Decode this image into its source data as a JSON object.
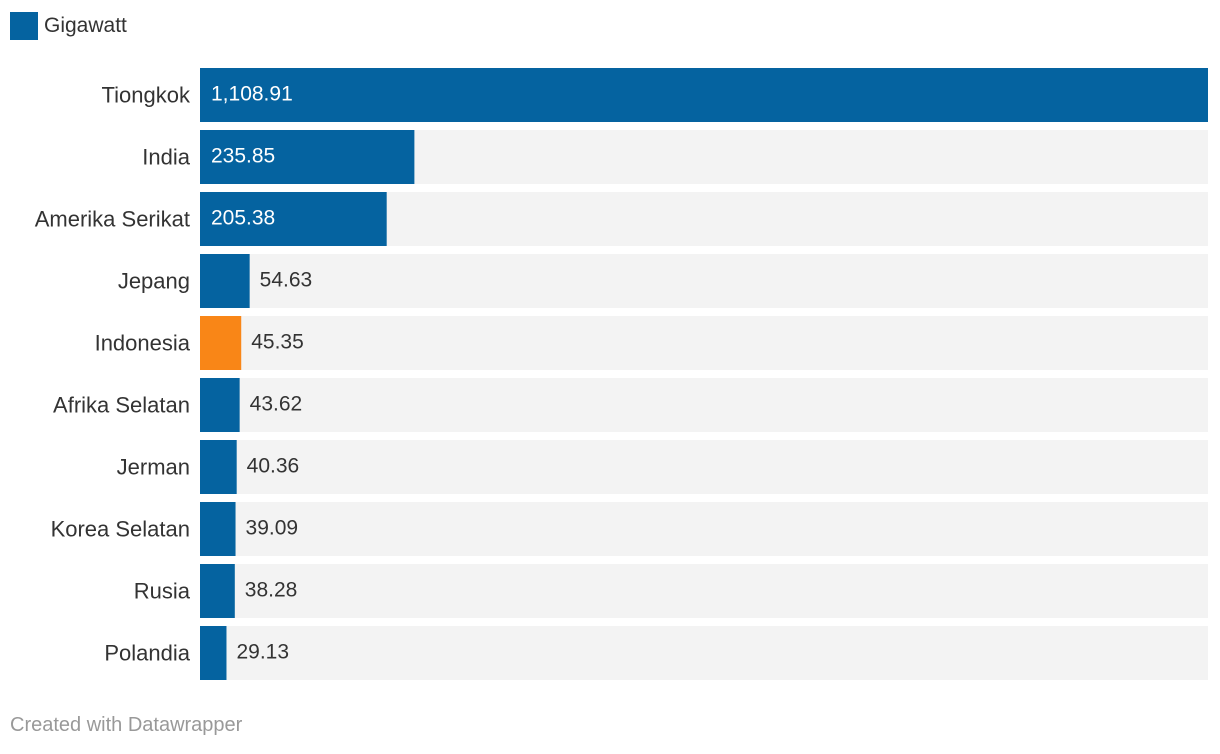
{
  "legend": {
    "label": "Gigawatt"
  },
  "footer": {
    "text": "Created with Datawrapper"
  },
  "colors": {
    "bar": "#0563a0",
    "highlight": "#f98617",
    "track": "#f3f3f3",
    "label_inside": "#ffffff",
    "label_outside": "#333333"
  },
  "chart_data": {
    "type": "bar",
    "orientation": "horizontal",
    "title": "",
    "xlabel": "",
    "ylabel": "",
    "categories": [
      "Tiongkok",
      "India",
      "Amerika Serikat",
      "Jepang",
      "Indonesia",
      "Afrika Selatan",
      "Jerman",
      "Korea Selatan",
      "Rusia",
      "Polandia"
    ],
    "values": [
      1108.91,
      235.85,
      205.38,
      54.63,
      45.35,
      43.62,
      40.36,
      39.09,
      38.28,
      29.13
    ],
    "value_labels": [
      "1,108.91",
      "235.85",
      "205.38",
      "54.63",
      "45.35",
      "43.62",
      "40.36",
      "39.09",
      "38.28",
      "29.13"
    ],
    "highlighted": [
      "Indonesia"
    ],
    "series": [
      {
        "name": "Gigawatt",
        "values": [
          1108.91,
          235.85,
          205.38,
          54.63,
          45.35,
          43.62,
          40.36,
          39.09,
          38.28,
          29.13
        ]
      }
    ],
    "xlim": [
      0,
      1108.91
    ],
    "grid": false,
    "legend_position": "top-left"
  }
}
